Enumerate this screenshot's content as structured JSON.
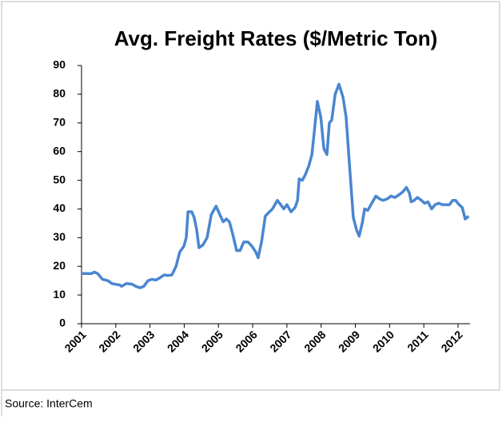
{
  "chart_data": {
    "type": "line",
    "title": "Avg. Freight Rates ($/Metric Ton)",
    "source": "Source: InterCem",
    "color": "#4a86d0",
    "x": [
      2001.0,
      2001.3,
      2001.37,
      2001.47,
      2001.61,
      2001.77,
      2001.89,
      2002.12,
      2002.17,
      2002.31,
      2002.47,
      2002.59,
      2002.71,
      2002.82,
      2002.94,
      2003.06,
      2003.17,
      2003.29,
      2003.41,
      2003.52,
      2003.64,
      2003.76,
      2003.87,
      2003.99,
      2004.06,
      2004.11,
      2004.22,
      2004.29,
      2004.36,
      2004.43,
      2004.55,
      2004.67,
      2004.79,
      2004.93,
      2005.04,
      2005.14,
      2005.23,
      2005.32,
      2005.42,
      2005.53,
      2005.63,
      2005.74,
      2005.86,
      2005.98,
      2006.09,
      2006.16,
      2006.26,
      2006.37,
      2006.49,
      2006.58,
      2006.72,
      2006.82,
      2006.91,
      2007.0,
      2007.12,
      2007.24,
      2007.31,
      2007.36,
      2007.45,
      2007.54,
      2007.64,
      2007.73,
      2007.8,
      2007.89,
      2007.99,
      2008.08,
      2008.17,
      2008.24,
      2008.31,
      2008.41,
      2008.52,
      2008.64,
      2008.73,
      2008.83,
      2008.94,
      2009.04,
      2009.11,
      2009.2,
      2009.27,
      2009.36,
      2009.48,
      2009.6,
      2009.71,
      2009.81,
      2009.93,
      2010.04,
      2010.16,
      2010.28,
      2010.39,
      2010.49,
      2010.58,
      2010.63,
      2010.72,
      2010.81,
      2010.93,
      2011.02,
      2011.12,
      2011.23,
      2011.33,
      2011.44,
      2011.54,
      2011.63,
      2011.75,
      2011.84,
      2011.93,
      2012.03,
      2012.12,
      2012.21,
      2012.31
    ],
    "values": [
      17.5,
      17.5,
      18,
      17.5,
      15.5,
      15,
      14,
      13.5,
      13,
      14,
      13.8,
      13,
      12.5,
      13,
      15,
      15.5,
      15.2,
      16,
      17,
      16.8,
      17,
      20,
      25,
      27,
      30,
      39,
      39,
      37,
      33,
      26.5,
      27.5,
      30,
      38,
      41,
      38,
      35.5,
      36.5,
      35.5,
      31,
      25.5,
      25.5,
      28.5,
      28.5,
      27,
      25,
      23,
      28.5,
      37.5,
      39,
      40,
      43,
      41.5,
      40,
      41.5,
      39,
      40.5,
      43,
      50.5,
      50,
      52,
      55,
      59,
      67,
      77.5,
      72,
      61,
      59,
      70,
      71,
      80,
      83.5,
      79,
      72,
      55,
      37,
      32.5,
      30.5,
      35,
      40,
      39.5,
      42,
      44.5,
      43.5,
      43,
      43.5,
      44.5,
      44,
      45,
      46,
      47.5,
      45.5,
      42.5,
      43,
      44,
      43,
      42,
      42.5,
      40,
      41.5,
      42,
      41.5,
      41.5,
      41.5,
      43,
      43,
      41.5,
      40.5,
      36.5,
      37.5
    ],
    "xlim": [
      2001,
      2012.35
    ],
    "xticks": [
      2001,
      2002,
      2003,
      2004,
      2005,
      2006,
      2007,
      2008,
      2009,
      2010,
      2011,
      2012
    ],
    "ylim": [
      0,
      90
    ],
    "yticks": [
      0,
      10,
      20,
      30,
      40,
      50,
      60,
      70,
      80,
      90
    ]
  }
}
